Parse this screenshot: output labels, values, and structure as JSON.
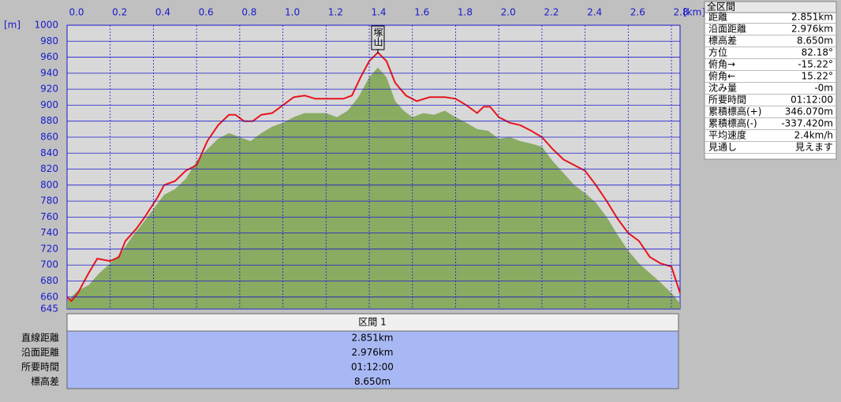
{
  "chart_data": {
    "type": "area",
    "x_label": "[km]",
    "y_label": "[m]",
    "annotation": {
      "text": "塚山",
      "x": 1.44
    },
    "xlim": [
      0,
      2.84
    ],
    "xticks": [
      {
        "value": 0,
        "label": "0.0"
      },
      0.2,
      0.4,
      0.6,
      0.8,
      {
        "value": 1,
        "label": "1.0"
      },
      1.2,
      1.4,
      1.6,
      1.8,
      {
        "value": 2,
        "label": "2.0"
      },
      2.2,
      2.4,
      2.6,
      2.8
    ],
    "ylim": [
      645,
      1000
    ],
    "yticks": [
      645,
      660,
      680,
      700,
      720,
      740,
      760,
      780,
      800,
      820,
      840,
      860,
      880,
      900,
      920,
      940,
      960,
      980,
      1000
    ],
    "grid": true,
    "series": [
      {
        "color": "#8aab62",
        "x": [
          0,
          0.05,
          0.1,
          0.15,
          0.2,
          0.25,
          0.3,
          0.35,
          0.4,
          0.45,
          0.5,
          0.55,
          0.6,
          0.65,
          0.7,
          0.75,
          0.8,
          0.85,
          0.9,
          0.95,
          1.0,
          1.05,
          1.1,
          1.2,
          1.25,
          1.3,
          1.35,
          1.4,
          1.44,
          1.48,
          1.52,
          1.56,
          1.6,
          1.65,
          1.7,
          1.75,
          1.8,
          1.85,
          1.9,
          1.95,
          2.0,
          2.05,
          2.1,
          2.15,
          2.2,
          2.25,
          2.3,
          2.35,
          2.4,
          2.45,
          2.5,
          2.55,
          2.6,
          2.65,
          2.7,
          2.75,
          2.8,
          2.84
        ],
        "values": [
          655,
          668,
          675,
          690,
          702,
          715,
          735,
          752,
          770,
          788,
          795,
          808,
          830,
          845,
          858,
          865,
          860,
          855,
          865,
          873,
          878,
          885,
          890,
          890,
          885,
          893,
          910,
          935,
          947,
          935,
          905,
          893,
          885,
          890,
          888,
          893,
          885,
          878,
          870,
          868,
          858,
          860,
          855,
          852,
          848,
          830,
          815,
          800,
          790,
          778,
          760,
          738,
          718,
          702,
          690,
          678,
          665,
          652
        ]
      },
      {
        "color": "#e8141c",
        "x": [
          0,
          0.02,
          0.05,
          0.1,
          0.14,
          0.2,
          0.24,
          0.27,
          0.32,
          0.36,
          0.42,
          0.45,
          0.5,
          0.55,
          0.6,
          0.65,
          0.7,
          0.75,
          0.78,
          0.82,
          0.86,
          0.9,
          0.95,
          1.0,
          1.05,
          1.1,
          1.15,
          1.2,
          1.28,
          1.32,
          1.36,
          1.4,
          1.44,
          1.48,
          1.52,
          1.57,
          1.62,
          1.68,
          1.75,
          1.8,
          1.85,
          1.9,
          1.93,
          1.96,
          2.0,
          2.05,
          2.1,
          2.15,
          2.2,
          2.25,
          2.3,
          2.35,
          2.4,
          2.45,
          2.5,
          2.55,
          2.6,
          2.65,
          2.7,
          2.75,
          2.8,
          2.84
        ],
        "values": [
          660,
          655,
          665,
          690,
          708,
          705,
          710,
          730,
          745,
          760,
          785,
          800,
          805,
          818,
          825,
          855,
          875,
          888,
          888,
          880,
          880,
          888,
          890,
          900,
          910,
          912,
          908,
          908,
          908,
          912,
          935,
          955,
          966,
          955,
          928,
          912,
          905,
          910,
          910,
          908,
          900,
          890,
          898,
          898,
          885,
          878,
          875,
          868,
          860,
          845,
          832,
          825,
          818,
          800,
          780,
          758,
          740,
          730,
          710,
          702,
          698,
          665
        ]
      }
    ]
  },
  "info_panel": {
    "title": "全区間",
    "rows": [
      [
        "距離",
        "2.851km"
      ],
      [
        "沿面距離",
        "2.976km"
      ],
      [
        "標高差",
        "8.650m"
      ],
      [
        "方位",
        "82.18°"
      ],
      [
        "俯角→",
        "-15.22°"
      ],
      [
        "俯角←",
        "15.22°"
      ],
      [
        "沈み量",
        "-0m"
      ],
      [
        "所要時間",
        "01:12:00"
      ],
      [
        "累積標高(+)",
        "346.070m"
      ],
      [
        "累積標高(-)",
        "-337.420m"
      ],
      [
        "平均速度",
        "2.4km/h"
      ],
      [
        "見通し",
        "見えます"
      ]
    ]
  },
  "section_table": {
    "header": "区間 1",
    "rows": [
      [
        "直線距離",
        "2.851km"
      ],
      [
        "沿面距離",
        "2.976km"
      ],
      [
        "所要時間",
        "01:12:00"
      ],
      [
        "標高差",
        "8.650m"
      ]
    ]
  }
}
